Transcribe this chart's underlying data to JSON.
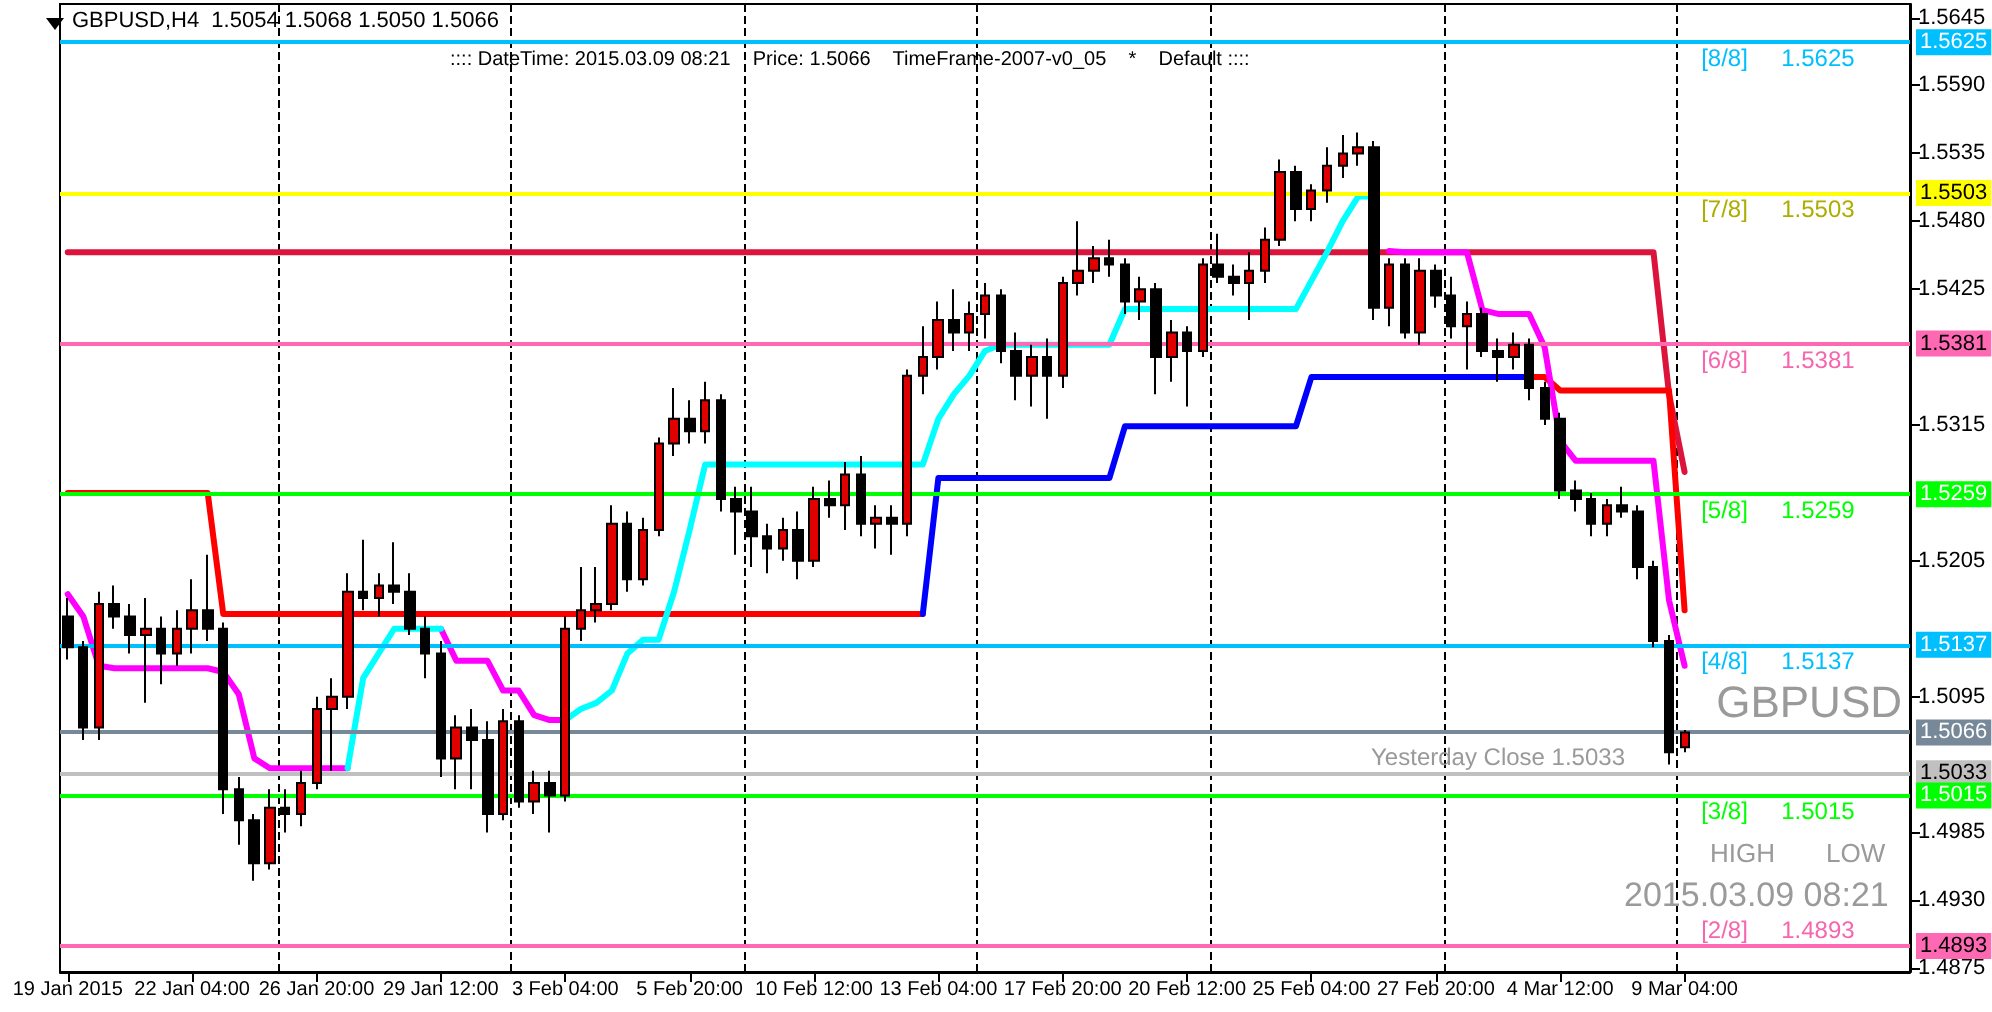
{
  "chart_data": {
    "type": "candlestick",
    "title": "GBPUSD,H4  1.5054 1.5068 1.5050 1.5066",
    "subtitle": ":::: DateTime: 2015.03.09 08:21    Price: 1.5066    TimeFrame-2007-v0_05    *    Default ::::",
    "categories": [
      "19 Jan 2015",
      null,
      null,
      null,
      null,
      null,
      null,
      null,
      "22 Jan 04:00",
      null,
      null,
      null,
      null,
      null,
      null,
      null,
      "26 Jan 20:00",
      null,
      null,
      null,
      null,
      null,
      null,
      null,
      "29 Jan 12:00",
      null,
      null,
      null,
      null,
      null,
      null,
      null,
      "3 Feb 04:00",
      null,
      null,
      null,
      null,
      null,
      null,
      null,
      "5 Feb 20:00",
      null,
      null,
      null,
      null,
      null,
      null,
      null,
      "10 Feb 12:00",
      null,
      null,
      null,
      null,
      null,
      null,
      null,
      "13 Feb 04:00",
      null,
      null,
      null,
      null,
      null,
      null,
      null,
      "17 Feb 20:00",
      null,
      null,
      null,
      null,
      null,
      null,
      null,
      "20 Feb 12:00",
      null,
      null,
      null,
      null,
      null,
      null,
      null,
      "25 Feb 04:00",
      null,
      null,
      null,
      null,
      null,
      null,
      null,
      "27 Feb 20:00",
      null,
      null,
      null,
      null,
      null,
      null,
      null,
      "4 Mar 12:00",
      null,
      null,
      null,
      null,
      null,
      null,
      null,
      "9 Mar 04:00",
      null,
      null,
      null,
      null,
      null,
      null,
      null,
      null,
      null,
      null,
      null,
      null,
      null,
      null
    ],
    "ohlc": [
      [
        1.516,
        1.5175,
        1.5125,
        1.5135
      ],
      [
        1.5135,
        1.514,
        1.506,
        1.507
      ],
      [
        1.507,
        1.518,
        1.506,
        1.517
      ],
      [
        1.517,
        1.5185,
        1.515,
        1.516
      ],
      [
        1.516,
        1.517,
        1.513,
        1.5145
      ],
      [
        1.5145,
        1.5175,
        1.509,
        1.515
      ],
      [
        1.515,
        1.516,
        1.5105,
        1.513
      ],
      [
        1.513,
        1.5165,
        1.512,
        1.515
      ],
      [
        1.515,
        1.519,
        1.513,
        1.5165
      ],
      [
        1.5165,
        1.521,
        1.514,
        1.515
      ],
      [
        1.515,
        1.5155,
        1.5,
        1.502
      ],
      [
        1.502,
        1.503,
        1.4975,
        1.4995
      ],
      [
        1.4995,
        1.5,
        1.4946,
        1.496
      ],
      [
        1.496,
        1.502,
        1.4955,
        1.5005
      ],
      [
        1.5005,
        1.502,
        1.4985,
        1.5
      ],
      [
        1.5,
        1.5035,
        1.499,
        1.5025
      ],
      [
        1.5025,
        1.5095,
        1.502,
        1.5085
      ],
      [
        1.5085,
        1.511,
        1.5035,
        1.5095
      ],
      [
        1.5095,
        1.5195,
        1.5085,
        1.518
      ],
      [
        1.518,
        1.5222,
        1.5165,
        1.5175
      ],
      [
        1.5175,
        1.5195,
        1.516,
        1.5185
      ],
      [
        1.5185,
        1.522,
        1.517,
        1.518
      ],
      [
        1.518,
        1.5195,
        1.5145,
        1.515
      ],
      [
        1.515,
        1.516,
        1.511,
        1.513
      ],
      [
        1.513,
        1.514,
        1.503,
        1.5045
      ],
      [
        1.5045,
        1.508,
        1.502,
        1.507
      ],
      [
        1.507,
        1.5085,
        1.502,
        1.506
      ],
      [
        1.506,
        1.5075,
        1.4985,
        1.5
      ],
      [
        1.5,
        1.5085,
        1.4995,
        1.5075
      ],
      [
        1.5075,
        1.508,
        1.5005,
        1.501
      ],
      [
        1.501,
        1.5035,
        1.5,
        1.5025
      ],
      [
        1.5025,
        1.5035,
        1.4985,
        1.5015
      ],
      [
        1.5015,
        1.516,
        1.501,
        1.515
      ],
      [
        1.515,
        1.52,
        1.514,
        1.5165
      ],
      [
        1.5165,
        1.52,
        1.5155,
        1.517
      ],
      [
        1.517,
        1.525,
        1.5165,
        1.5235
      ],
      [
        1.5235,
        1.5245,
        1.518,
        1.519
      ],
      [
        1.519,
        1.524,
        1.5185,
        1.523
      ],
      [
        1.523,
        1.5305,
        1.5225,
        1.53
      ],
      [
        1.53,
        1.5345,
        1.529,
        1.532
      ],
      [
        1.532,
        1.5335,
        1.53,
        1.531
      ],
      [
        1.531,
        1.535,
        1.53,
        1.5335
      ],
      [
        1.5335,
        1.534,
        1.5245,
        1.5255
      ],
      [
        1.5255,
        1.5265,
        1.521,
        1.5245
      ],
      [
        1.5245,
        1.5265,
        1.52,
        1.5225
      ],
      [
        1.5225,
        1.5235,
        1.5195,
        1.5215
      ],
      [
        1.5215,
        1.524,
        1.5205,
        1.523
      ],
      [
        1.523,
        1.5245,
        1.519,
        1.5205
      ],
      [
        1.5205,
        1.5265,
        1.52,
        1.5255
      ],
      [
        1.5255,
        1.527,
        1.524,
        1.525
      ],
      [
        1.525,
        1.5285,
        1.523,
        1.5275
      ],
      [
        1.5275,
        1.529,
        1.5225,
        1.5235
      ],
      [
        1.5235,
        1.525,
        1.5215,
        1.524
      ],
      [
        1.524,
        1.525,
        1.521,
        1.5235
      ],
      [
        1.5235,
        1.536,
        1.5225,
        1.5355
      ],
      [
        1.5355,
        1.5395,
        1.534,
        1.537
      ],
      [
        1.537,
        1.5415,
        1.536,
        1.54
      ],
      [
        1.54,
        1.5425,
        1.5375,
        1.539
      ],
      [
        1.539,
        1.5415,
        1.5375,
        1.5405
      ],
      [
        1.5405,
        1.543,
        1.5385,
        1.542
      ],
      [
        1.542,
        1.5425,
        1.5365,
        1.5375
      ],
      [
        1.5375,
        1.539,
        1.5335,
        1.5355
      ],
      [
        1.5355,
        1.538,
        1.533,
        1.537
      ],
      [
        1.537,
        1.5385,
        1.532,
        1.5355
      ],
      [
        1.5355,
        1.5435,
        1.5345,
        1.543
      ],
      [
        1.543,
        1.548,
        1.542,
        1.544
      ],
      [
        1.544,
        1.546,
        1.543,
        1.545
      ],
      [
        1.545,
        1.5465,
        1.5435,
        1.5445
      ],
      [
        1.5445,
        1.545,
        1.5405,
        1.5415
      ],
      [
        1.5415,
        1.5435,
        1.54,
        1.5425
      ],
      [
        1.5425,
        1.543,
        1.534,
        1.537
      ],
      [
        1.537,
        1.54,
        1.535,
        1.539
      ],
      [
        1.539,
        1.5395,
        1.533,
        1.5375
      ],
      [
        1.5375,
        1.545,
        1.537,
        1.5445
      ],
      [
        1.5445,
        1.547,
        1.543,
        1.5435
      ],
      [
        1.5435,
        1.5445,
        1.542,
        1.543
      ],
      [
        1.543,
        1.5455,
        1.54,
        1.544
      ],
      [
        1.544,
        1.5475,
        1.543,
        1.5465
      ],
      [
        1.5465,
        1.553,
        1.546,
        1.552
      ],
      [
        1.552,
        1.5525,
        1.548,
        1.549
      ],
      [
        1.549,
        1.551,
        1.548,
        1.5505
      ],
      [
        1.5505,
        1.554,
        1.5495,
        1.5525
      ],
      [
        1.5525,
        1.555,
        1.5515,
        1.5535
      ],
      [
        1.5535,
        1.5552,
        1.5525,
        1.554
      ],
      [
        1.554,
        1.5545,
        1.54,
        1.541
      ],
      [
        1.541,
        1.545,
        1.5395,
        1.5445
      ],
      [
        1.5445,
        1.545,
        1.5385,
        1.539
      ],
      [
        1.539,
        1.545,
        1.538,
        1.544
      ],
      [
        1.544,
        1.5445,
        1.541,
        1.542
      ],
      [
        1.542,
        1.5435,
        1.5385,
        1.5395
      ],
      [
        1.5395,
        1.5415,
        1.536,
        1.5405
      ],
      [
        1.5405,
        1.541,
        1.537,
        1.5375
      ],
      [
        1.5375,
        1.5385,
        1.535,
        1.537
      ],
      [
        1.537,
        1.539,
        1.536,
        1.538
      ],
      [
        1.538,
        1.5385,
        1.5335,
        1.5345
      ],
      [
        1.5345,
        1.535,
        1.5315,
        1.532
      ],
      [
        1.532,
        1.5325,
        1.5255,
        1.5262
      ],
      [
        1.5262,
        1.527,
        1.5245,
        1.5255
      ],
      [
        1.5255,
        1.526,
        1.5225,
        1.5235
      ],
      [
        1.5235,
        1.5255,
        1.5225,
        1.525
      ],
      [
        1.525,
        1.5265,
        1.524,
        1.5245
      ],
      [
        1.5245,
        1.525,
        1.519,
        1.52
      ],
      [
        1.52,
        1.5205,
        1.5135,
        1.514
      ],
      [
        1.514,
        1.5145,
        1.504,
        1.505
      ],
      [
        1.5054,
        1.5068,
        1.505,
        1.5066
      ],
      null,
      null,
      null,
      null,
      null,
      null,
      null,
      null,
      null,
      null,
      null,
      null,
      null,
      null
    ],
    "series": [
      {
        "type": "line",
        "color": "#dc143c",
        "values": [
          1.5455,
          1.5455,
          1.5455,
          1.5455,
          1.5455,
          1.5455,
          1.5455,
          1.5455,
          1.5455,
          1.5455,
          1.5455,
          1.5455,
          1.5455,
          1.5455,
          1.5455,
          1.5455,
          1.5455,
          1.5455,
          1.5455,
          1.5455,
          1.5455,
          1.5455,
          1.5455,
          1.5455,
          1.5455,
          1.5455,
          1.5455,
          1.5455,
          1.5455,
          1.5455,
          1.5455,
          1.5455,
          1.5455,
          1.5455,
          1.5455,
          1.5455,
          1.5455,
          1.5455,
          1.5455,
          1.5455,
          1.5455,
          1.5455,
          1.5455,
          1.5455,
          1.5455,
          1.5455,
          1.5455,
          1.5455,
          1.5455,
          1.5455,
          1.5455,
          1.5455,
          1.5455,
          1.5455,
          1.5455,
          1.5455,
          1.5455,
          1.5455,
          1.5455,
          1.5455,
          1.5455,
          1.5455,
          1.5455,
          1.5455,
          1.5455,
          1.5455,
          1.5455,
          1.5455,
          1.5455,
          1.5455,
          1.5455,
          1.5455,
          1.5455,
          1.5455,
          1.5455,
          1.5455,
          1.5455,
          1.5455,
          1.5455,
          1.5455,
          1.5455,
          1.5455,
          1.5455,
          1.5455,
          1.5455,
          1.5455,
          1.5455,
          1.5455,
          1.5455,
          1.5455,
          1.5455,
          1.5455,
          1.5455,
          1.5455,
          1.5455,
          1.5455,
          1.5455,
          1.5455,
          1.5455,
          1.5455,
          1.5455,
          1.5455,
          1.5455,
          1.534,
          1.5277,
          null,
          null,
          null,
          null,
          null,
          null,
          null,
          null,
          null,
          null,
          null,
          null,
          null,
          null
        ]
      },
      {
        "type": "line",
        "color": "#ff0000",
        "values": [
          1.526,
          1.526,
          1.526,
          1.526,
          1.526,
          1.526,
          1.526,
          1.526,
          1.526,
          1.526,
          1.5162,
          1.5162,
          1.5162,
          1.5162,
          1.5162,
          1.5162,
          1.5162,
          1.5162,
          1.5162,
          1.5162,
          1.5162,
          1.5162,
          1.5162,
          1.5162,
          1.5162,
          1.5162,
          1.5162,
          1.5162,
          1.5162,
          1.5162,
          1.5162,
          1.5162,
          1.5162,
          1.5162,
          1.5162,
          1.5162,
          1.5162,
          1.5162,
          1.5162,
          1.5162,
          1.5162,
          1.5162,
          1.5162,
          1.5162,
          1.5162,
          1.5162,
          1.5162,
          1.5162,
          1.5162,
          1.5162,
          1.5162,
          1.5162,
          1.5162,
          1.5162,
          1.5162,
          1.5162,
          null,
          null,
          null,
          null,
          null,
          null,
          null,
          null,
          null,
          null,
          null,
          null,
          null,
          null,
          null,
          null,
          null,
          null,
          null,
          null,
          null,
          null,
          null,
          null,
          null,
          null,
          null,
          null,
          null,
          null,
          null,
          null,
          null,
          null,
          null,
          null,
          null,
          null,
          1.5354,
          1.5354,
          1.5343,
          1.5343,
          1.5343,
          1.5343,
          1.5343,
          1.5343,
          1.5343,
          1.5343,
          1.5165,
          null,
          null,
          null,
          null,
          null,
          null,
          null,
          null,
          null,
          null,
          null,
          null,
          null,
          null
        ]
      },
      {
        "type": "line",
        "color": "#0000ff",
        "values": [
          null,
          null,
          null,
          null,
          null,
          null,
          null,
          null,
          null,
          null,
          null,
          null,
          null,
          null,
          null,
          null,
          null,
          null,
          null,
          null,
          null,
          null,
          null,
          null,
          null,
          null,
          null,
          null,
          null,
          null,
          null,
          null,
          null,
          null,
          null,
          null,
          null,
          null,
          null,
          null,
          null,
          null,
          null,
          null,
          null,
          null,
          null,
          null,
          null,
          null,
          null,
          null,
          null,
          null,
          null,
          1.5162,
          1.5272,
          1.5272,
          1.5272,
          1.5272,
          1.5272,
          1.5272,
          1.5272,
          1.5272,
          1.5272,
          1.5272,
          1.5272,
          1.5272,
          1.5314,
          1.5314,
          1.5314,
          1.5314,
          1.5314,
          1.5314,
          1.5314,
          1.5314,
          1.5314,
          1.5314,
          1.5314,
          1.5314,
          1.5354,
          1.5354,
          1.5354,
          1.5354,
          1.5354,
          1.5354,
          1.5354,
          1.5354,
          1.5354,
          1.5354,
          1.5354,
          1.5354,
          1.5354,
          1.5354,
          1.5354,
          null,
          null,
          null,
          null,
          null,
          null,
          null,
          null,
          null,
          null,
          null,
          null,
          null,
          null,
          null,
          null,
          null,
          null,
          null,
          null,
          null,
          null,
          null,
          null
        ]
      },
      {
        "type": "line",
        "color": "#ff00ff",
        "values": [
          1.5178,
          1.516,
          1.512,
          1.5118,
          1.5118,
          1.5118,
          1.5118,
          1.5118,
          1.5118,
          1.5118,
          1.5115,
          1.5097,
          1.5045,
          1.5037,
          1.5037,
          1.5037,
          1.5037,
          1.5037,
          1.5037,
          null,
          null,
          null,
          null,
          null,
          1.515,
          1.5124,
          1.5124,
          1.5124,
          1.51,
          1.51,
          1.508,
          1.5076,
          1.5076,
          null,
          null,
          null,
          null,
          null,
          null,
          null,
          null,
          null,
          null,
          null,
          null,
          null,
          null,
          null,
          null,
          null,
          null,
          null,
          null,
          null,
          null,
          null,
          null,
          null,
          null,
          null,
          null,
          null,
          null,
          null,
          null,
          null,
          null,
          null,
          null,
          null,
          null,
          null,
          null,
          null,
          null,
          null,
          null,
          null,
          null,
          null,
          null,
          null,
          null,
          null,
          null,
          1.5456,
          1.5455,
          1.5455,
          1.5455,
          1.5455,
          1.5455,
          1.5408,
          1.5405,
          1.5405,
          1.5405,
          1.5378,
          1.5302,
          1.5286,
          1.5286,
          1.5286,
          1.5286,
          1.5286,
          1.5286,
          1.5173,
          1.512,
          null,
          null,
          null,
          null,
          null,
          null,
          null,
          null,
          null,
          null,
          null,
          null,
          null,
          null
        ]
      },
      {
        "type": "line",
        "color": "#00ffff",
        "values": [
          null,
          null,
          null,
          null,
          null,
          null,
          null,
          null,
          null,
          null,
          null,
          null,
          null,
          null,
          null,
          null,
          null,
          null,
          1.5037,
          1.511,
          1.513,
          1.515,
          1.515,
          1.515,
          1.515,
          null,
          null,
          null,
          null,
          null,
          null,
          null,
          1.5076,
          1.5085,
          1.509,
          1.51,
          1.513,
          1.5141,
          1.5141,
          1.518,
          1.523,
          1.5283,
          1.5283,
          1.5283,
          1.5283,
          1.5283,
          1.5283,
          1.5283,
          1.5283,
          1.5283,
          1.5283,
          1.5283,
          1.5283,
          1.5283,
          1.5283,
          1.5283,
          1.532,
          1.534,
          1.5355,
          1.5375,
          1.538,
          1.538,
          1.538,
          1.538,
          1.538,
          1.538,
          1.538,
          1.538,
          1.5409,
          1.5409,
          1.5409,
          1.5409,
          1.5409,
          1.5409,
          1.5409,
          1.5409,
          1.5409,
          1.5409,
          1.5409,
          1.5409,
          1.5432,
          1.5455,
          1.548,
          1.55,
          1.55,
          null,
          null,
          null,
          null,
          null,
          null,
          null,
          null,
          null,
          null,
          null,
          null,
          null,
          null,
          null,
          null,
          null,
          null,
          null,
          null,
          null,
          null,
          null,
          null,
          null,
          null,
          null,
          null,
          null,
          null,
          null,
          null,
          null,
          null
        ]
      }
    ],
    "ylim": [
      1.4872,
      1.5656
    ],
    "yticks": [
      1.5645,
      {
        "value": 1.559,
        "label": "1.5590"
      },
      1.5535,
      {
        "value": 1.548,
        "label": "1.5480"
      },
      1.5425,
      1.5315,
      1.5205,
      1.5095,
      1.4985,
      {
        "value": 1.493,
        "label": "1.4930"
      },
      1.4875
    ],
    "grid": "x",
    "ref_lines": [
      {
        "axis": "y",
        "value": 1.5625,
        "label": "1.5625",
        "color": "#00bfff"
      },
      {
        "axis": "y",
        "value": 1.5503,
        "label": "1.5503",
        "color": "#ffff00"
      },
      {
        "axis": "y",
        "value": 1.5381,
        "label": "1.5381",
        "color": "#ff69b4"
      },
      {
        "axis": "y",
        "value": 1.5259,
        "label": "1.5259",
        "color": "#00ff00"
      },
      {
        "axis": "y",
        "value": 1.5137,
        "label": "1.5137",
        "color": "#00bfff"
      },
      {
        "axis": "y",
        "value": 1.5066,
        "label": "1.5066",
        "color": "#778899"
      },
      {
        "axis": "y",
        "value": 1.5033,
        "label": "1.5033",
        "color": "#c0c0c0"
      },
      {
        "axis": "y",
        "value": 1.5015,
        "label": "1.5015",
        "color": "#00ff00"
      },
      {
        "axis": "y",
        "value": 1.4893,
        "label": "1.4893",
        "color": "#ff69b4"
      }
    ],
    "annotations": [
      "GBPUSD",
      "HIGH",
      "LOW",
      "2015.03.09 08:21",
      {
        "text": "[8/8]     1.5625",
        "y": 1.5625
      },
      {
        "text": "[7/8]     1.5503",
        "y": 1.5503
      },
      {
        "text": "[6/8]     1.5381",
        "y": 1.5381
      },
      {
        "text": "[5/8]     1.5259",
        "y": 1.5259
      },
      {
        "text": "[4/8]     1.5137",
        "y": 1.5137
      },
      {
        "text": "Yesterday Close 1.5033",
        "y": 1.5033
      },
      {
        "text": "[3/8]     1.5015",
        "y": 1.5015
      },
      {
        "text": "[2/8]     1.4893",
        "y": 1.4893
      }
    ]
  }
}
